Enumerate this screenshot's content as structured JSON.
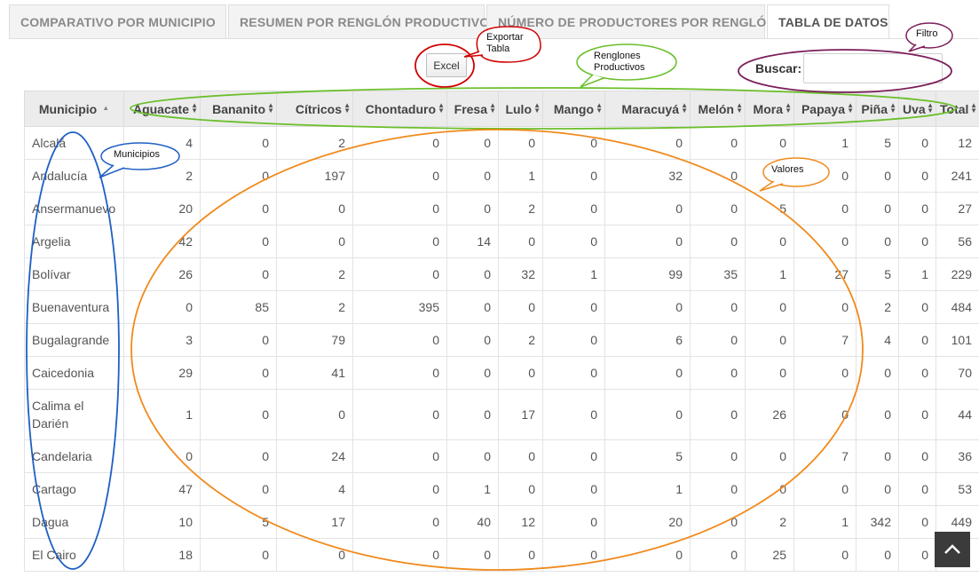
{
  "tabs": [
    {
      "label": "COMPARATIVO POR MUNICIPIO"
    },
    {
      "label": "RESUMEN POR RENGLÓN PRODUCTIVO"
    },
    {
      "label": "NÚMERO DE PRODUCTORES POR RENGLÓN"
    },
    {
      "label": "TABLA DE DATOS"
    }
  ],
  "toolbar": {
    "excel_label": "Excel",
    "search_label": "Buscar:",
    "search_value": ""
  },
  "table": {
    "headers": [
      "Municipio",
      "Aguacate",
      "Bananito",
      "Cítricos",
      "Chontaduro",
      "Fresa",
      "Lulo",
      "Mango",
      "Maracuyá",
      "Melón",
      "Mora",
      "Papaya",
      "Piña",
      "Uva",
      "Total"
    ],
    "rows": [
      {
        "municipio": "Alcalá",
        "values": [
          "4",
          "0",
          "2",
          "0",
          "0",
          "0",
          "0",
          "0",
          "0",
          "0",
          "1",
          "5",
          "0",
          "12"
        ]
      },
      {
        "municipio": "Andalucía",
        "values": [
          "2",
          "0",
          "197",
          "0",
          "0",
          "1",
          "0",
          "32",
          "0",
          "",
          "0",
          "0",
          "0",
          "241"
        ]
      },
      {
        "municipio": "Ansermanuevo",
        "values": [
          "20",
          "0",
          "0",
          "0",
          "0",
          "2",
          "0",
          "0",
          "0",
          "5",
          "0",
          "0",
          "0",
          "27"
        ]
      },
      {
        "municipio": "Argelia",
        "values": [
          "42",
          "0",
          "0",
          "0",
          "14",
          "0",
          "0",
          "0",
          "0",
          "0",
          "0",
          "0",
          "0",
          "56"
        ]
      },
      {
        "municipio": "Bolívar",
        "values": [
          "26",
          "0",
          "2",
          "0",
          "0",
          "32",
          "1",
          "99",
          "35",
          "1",
          "27",
          "5",
          "1",
          "229"
        ]
      },
      {
        "municipio": "Buenaventura",
        "values": [
          "0",
          "85",
          "2",
          "395",
          "0",
          "0",
          "0",
          "0",
          "0",
          "0",
          "0",
          "2",
          "0",
          "484"
        ]
      },
      {
        "municipio": "Bugalagrande",
        "values": [
          "3",
          "0",
          "79",
          "0",
          "0",
          "2",
          "0",
          "6",
          "0",
          "0",
          "7",
          "4",
          "0",
          "101"
        ]
      },
      {
        "municipio": "Caicedonia",
        "values": [
          "29",
          "0",
          "41",
          "0",
          "0",
          "0",
          "0",
          "0",
          "0",
          "0",
          "0",
          "0",
          "0",
          "70"
        ]
      },
      {
        "municipio": "Calima el Darién",
        "values": [
          "1",
          "0",
          "0",
          "0",
          "0",
          "17",
          "0",
          "0",
          "0",
          "26",
          "0",
          "0",
          "0",
          "44"
        ]
      },
      {
        "municipio": "Candelaria",
        "values": [
          "0",
          "0",
          "24",
          "0",
          "0",
          "0",
          "0",
          "5",
          "0",
          "0",
          "7",
          "0",
          "0",
          "36"
        ]
      },
      {
        "municipio": "Cartago",
        "values": [
          "47",
          "0",
          "4",
          "0",
          "1",
          "0",
          "0",
          "1",
          "0",
          "0",
          "0",
          "0",
          "0",
          "53"
        ]
      },
      {
        "municipio": "Dagua",
        "values": [
          "10",
          "5",
          "17",
          "0",
          "40",
          "12",
          "0",
          "20",
          "0",
          "2",
          "1",
          "342",
          "0",
          "449"
        ]
      },
      {
        "municipio": "El Cairo",
        "values": [
          "18",
          "0",
          "0",
          "0",
          "0",
          "0",
          "0",
          "0",
          "0",
          "25",
          "0",
          "0",
          "0",
          ""
        ]
      }
    ]
  },
  "annotations": {
    "exportar": "Exportar Tabla",
    "renglones": "Renglones Productivos",
    "filtro": "Filtro",
    "municipios": "Municipios",
    "valores": "Valores"
  },
  "colors": {
    "red": "#d00000",
    "green": "#6abf2a",
    "purple": "#7a1e5a",
    "blue": "#1f5fc4",
    "orange": "#f08a1c"
  }
}
